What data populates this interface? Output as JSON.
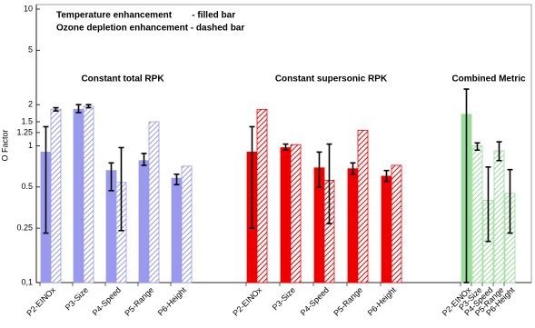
{
  "chart_data": {
    "type": "bar",
    "log": true,
    "legend_lines": [
      "Temperature enhancement        - filled bar",
      "Ozone depletion enhancement - dashed bar"
    ],
    "y_label": "O Factor",
    "ylim": [
      0.1,
      10
    ],
    "yticks": [
      {
        "value": 0.1,
        "label": "0,1"
      },
      0.25,
      0.5,
      1,
      1.25,
      1.5,
      2,
      5,
      10
    ],
    "groups": [
      {
        "title": "Constant total RPK",
        "categories": [
          "P2-EINOx",
          "P3-Size",
          "P4-Speed",
          "P5-Range",
          "P6-Height"
        ],
        "series": [
          {
            "color": "#9999ee",
            "hatched": false,
            "values": [
              0.9,
              1.85,
              0.66,
              0.78,
              0.58
            ],
            "err_low": [
              0.23,
              1.75,
              0.47,
              0.72,
              0.52
            ],
            "err_high": [
              1.38,
              2.0,
              0.75,
              0.88,
              0.62
            ]
          },
          {
            "color": "#9999ee",
            "hatched": true,
            "values": [
              1.85,
              1.95,
              0.54,
              1.5,
              0.71
            ],
            "err_low": [
              1.8,
              1.9,
              0.24,
              null,
              null
            ],
            "err_high": [
              1.9,
              2.0,
              0.97,
              null,
              null
            ]
          }
        ]
      },
      {
        "title": "Constant supersonic RPK",
        "categories": [
          "P2-EINOx",
          "P3-Size",
          "P4-Speed",
          "P5-Range",
          "P6-Height"
        ],
        "series": [
          {
            "color": "#ee0000",
            "hatched": false,
            "values": [
              0.9,
              0.97,
              0.69,
              0.68,
              0.6
            ],
            "err_low": [
              0.25,
              0.93,
              0.5,
              0.62,
              0.55
            ],
            "err_high": [
              1.38,
              1.03,
              0.9,
              0.75,
              0.66
            ]
          },
          {
            "color": "#ee0000",
            "hatched": true,
            "values": [
              1.85,
              1.02,
              0.56,
              1.3,
              0.72
            ],
            "err_low": [
              null,
              null,
              0.27,
              null,
              null
            ],
            "err_high": [
              null,
              null,
              1.03,
              null,
              null
            ]
          }
        ]
      },
      {
        "title": "Combined Metric",
        "categories": [
          "P2-EINOx",
          "P3-Size",
          "P4-Speed",
          "P5-Range",
          "P6-Height"
        ],
        "series": [
          {
            "color": "#99dd99",
            "hatched": [
              false,
              true,
              true,
              true,
              true
            ],
            "values": [
              1.7,
              1.0,
              0.4,
              0.92,
              0.45
            ],
            "err_low": [
              0.1,
              0.93,
              0.2,
              0.78,
              0.23
            ],
            "err_high": [
              2.6,
              1.05,
              0.7,
              1.07,
              0.67
            ]
          }
        ]
      }
    ]
  }
}
